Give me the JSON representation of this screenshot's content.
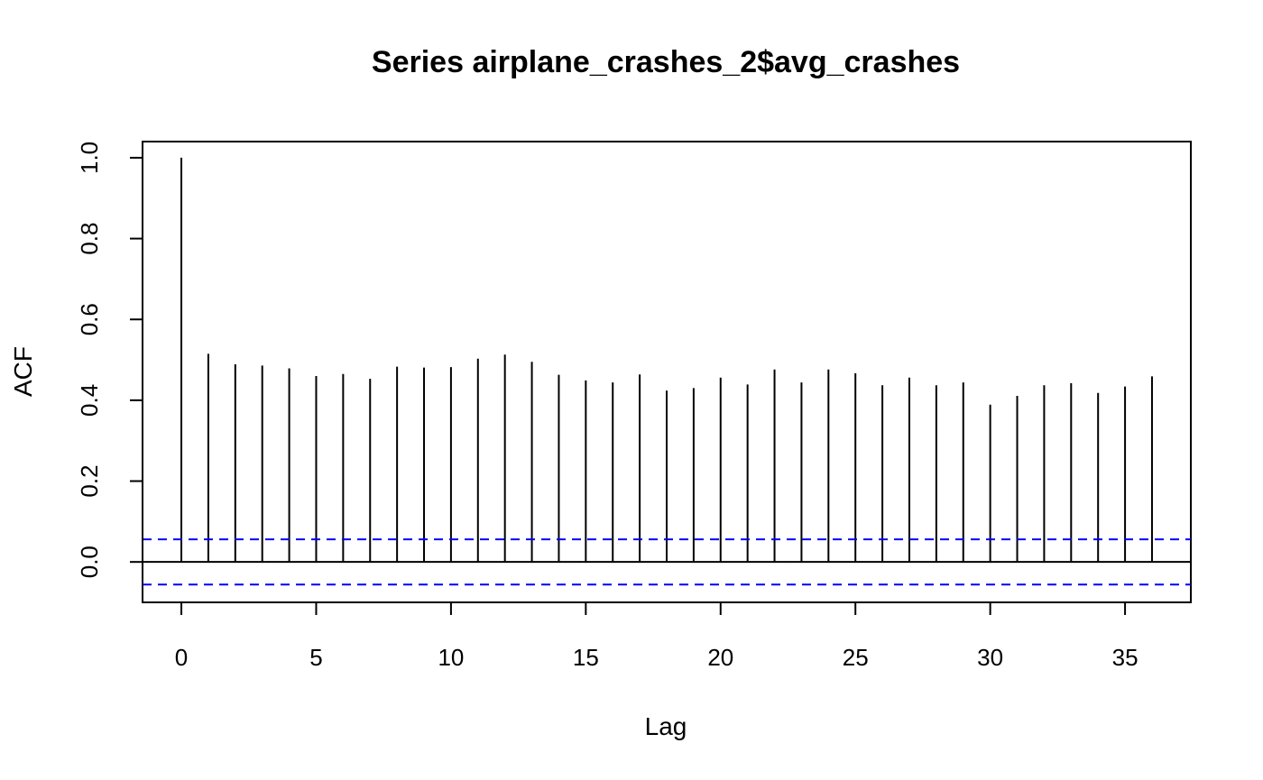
{
  "chart_data": {
    "type": "bar",
    "title": "Series  airplane_crashes_2$avg_crashes",
    "xlabel": "Lag",
    "ylabel": "ACF",
    "xlim": [
      -1.44,
      37.44
    ],
    "ylim": [
      -0.1,
      1.04
    ],
    "x_ticks": [
      0,
      5,
      10,
      15,
      20,
      25,
      30,
      35
    ],
    "y_ticks": [
      0.0,
      0.2,
      0.4,
      0.6,
      0.8,
      1.0
    ],
    "y_tick_labels": [
      "0.0",
      "0.2",
      "0.4",
      "0.6",
      "0.8",
      "1.0"
    ],
    "lags": [
      0,
      1,
      2,
      3,
      4,
      5,
      6,
      7,
      8,
      9,
      10,
      11,
      12,
      13,
      14,
      15,
      16,
      17,
      18,
      19,
      20,
      21,
      22,
      23,
      24,
      25,
      26,
      27,
      28,
      29,
      30,
      31,
      32,
      33,
      34,
      35,
      36
    ],
    "acf": [
      1.0,
      0.515,
      0.489,
      0.486,
      0.479,
      0.46,
      0.465,
      0.453,
      0.483,
      0.481,
      0.482,
      0.503,
      0.513,
      0.495,
      0.463,
      0.449,
      0.444,
      0.464,
      0.424,
      0.43,
      0.456,
      0.439,
      0.476,
      0.444,
      0.476,
      0.467,
      0.437,
      0.456,
      0.437,
      0.444,
      0.389,
      0.411,
      0.437,
      0.442,
      0.418,
      0.434,
      0.459
    ],
    "confidence_bounds": [
      0.056,
      -0.056
    ],
    "zero_line": true,
    "grid": false,
    "colors": {
      "bars": "#000000",
      "bounds": "#0000ff",
      "zero_line": "#000000"
    }
  }
}
